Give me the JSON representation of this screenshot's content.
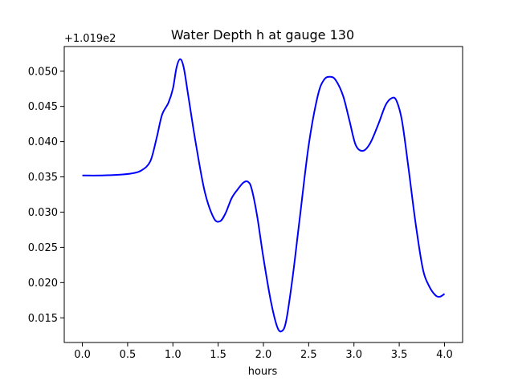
{
  "chart_data": {
    "type": "line",
    "title": "Water Depth h at gauge 130",
    "xlabel": "hours",
    "ylabel": "",
    "y_offset_label": "+1.019e2",
    "xlim": [
      -0.2,
      4.2
    ],
    "ylim": [
      0.0115,
      0.0535
    ],
    "x_ticks": [
      0.0,
      0.5,
      1.0,
      1.5,
      2.0,
      2.5,
      3.0,
      3.5,
      4.0
    ],
    "x_tick_labels": [
      "0.0",
      "0.5",
      "1.0",
      "1.5",
      "2.0",
      "2.5",
      "3.0",
      "3.5",
      "4.0"
    ],
    "y_ticks": [
      0.015,
      0.02,
      0.025,
      0.03,
      0.035,
      0.04,
      0.045,
      0.05
    ],
    "y_tick_labels": [
      "0.015",
      "0.020",
      "0.025",
      "0.030",
      "0.035",
      "0.040",
      "0.045",
      "0.050"
    ],
    "grid": false,
    "series": [
      {
        "color": "#0000ff",
        "x": [
          0.0,
          0.2,
          0.4,
          0.55,
          0.65,
          0.75,
          0.82,
          0.88,
          0.95,
          1.0,
          1.04,
          1.08,
          1.12,
          1.17,
          1.25,
          1.35,
          1.45,
          1.52,
          1.58,
          1.65,
          1.72,
          1.78,
          1.83,
          1.87,
          1.93,
          2.0,
          2.08,
          2.15,
          2.2,
          2.25,
          2.32,
          2.4,
          2.5,
          2.6,
          2.67,
          2.74,
          2.8,
          2.88,
          2.95,
          3.02,
          3.1,
          3.18,
          3.27,
          3.35,
          3.42,
          3.47,
          3.53,
          3.6,
          3.68,
          3.76,
          3.83,
          3.9,
          3.95,
          4.0
        ],
        "y": [
          0.0352,
          0.0352,
          0.0353,
          0.0355,
          0.0359,
          0.0372,
          0.0405,
          0.0438,
          0.0455,
          0.0475,
          0.0505,
          0.0517,
          0.0505,
          0.0465,
          0.04,
          0.033,
          0.0292,
          0.0287,
          0.0298,
          0.032,
          0.0333,
          0.0342,
          0.0343,
          0.0333,
          0.0295,
          0.0235,
          0.0175,
          0.0138,
          0.0131,
          0.0145,
          0.0205,
          0.029,
          0.0395,
          0.0465,
          0.0488,
          0.0492,
          0.0487,
          0.0465,
          0.043,
          0.0395,
          0.0387,
          0.0398,
          0.0425,
          0.0452,
          0.0462,
          0.0458,
          0.043,
          0.0365,
          0.0285,
          0.022,
          0.0195,
          0.0182,
          0.018,
          0.0184
        ]
      }
    ]
  }
}
